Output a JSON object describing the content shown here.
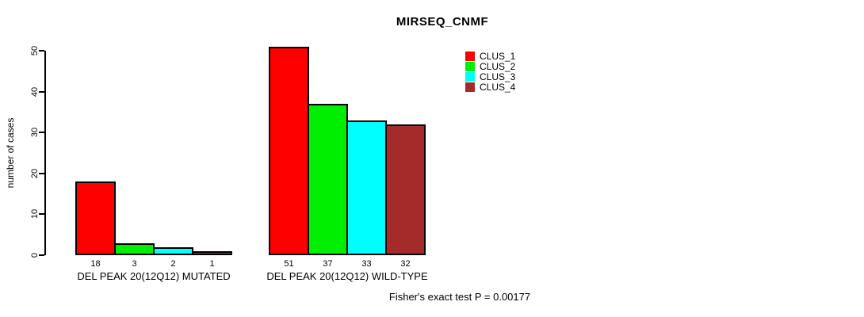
{
  "title": "MIRSEQ_CNMF",
  "footer_annotation": "Fisher's exact test P = 0.00177",
  "chart_data": {
    "type": "bar",
    "title": "MIRSEQ_CNMF",
    "xlabel": "",
    "ylabel": "number of cases",
    "ylim": [
      0,
      50
    ],
    "yticks": [
      0,
      10,
      20,
      30,
      40,
      50
    ],
    "grid": false,
    "legend_position": "top-right",
    "series": [
      {
        "name": "CLUS_1",
        "color": "#FF0000"
      },
      {
        "name": "CLUS_2",
        "color": "#00EE00"
      },
      {
        "name": "CLUS_3",
        "color": "#00FFFF"
      },
      {
        "name": "CLUS_4",
        "color": "#A52A2A"
      }
    ],
    "groups": [
      {
        "label": "DEL PEAK 20(12Q12) MUTATED",
        "values": [
          18,
          3,
          2,
          1
        ],
        "value_labels": [
          "18",
          "3",
          "2",
          "1"
        ]
      },
      {
        "label": "DEL PEAK 20(12Q12) WILD-TYPE",
        "values": [
          51,
          37,
          33,
          32
        ],
        "value_labels": [
          "51",
          "37",
          "33",
          "32"
        ]
      }
    ],
    "annotation": "Fisher's exact test P = 0.00177"
  }
}
